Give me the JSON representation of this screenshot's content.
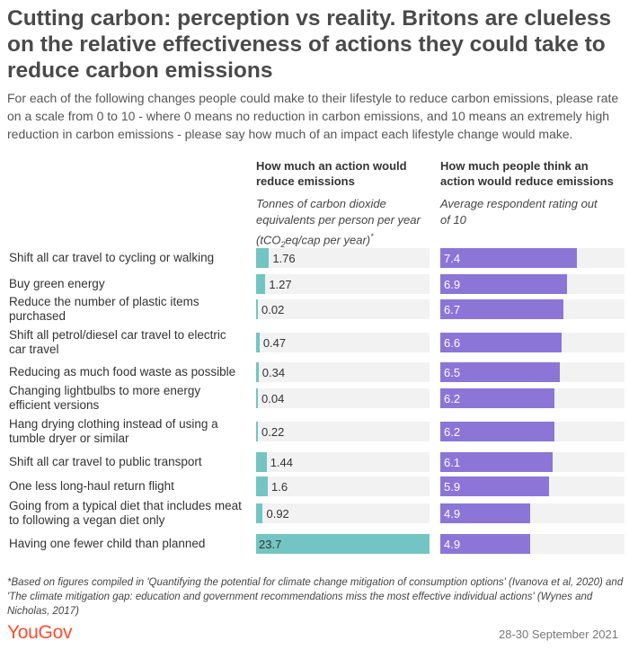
{
  "title": "Cutting carbon: perception vs reality. Britons are clueless on the relative effectiveness of actions they could take to reduce carbon emissions",
  "subtitle": "For each of the following changes people could make to their lifestyle to reduce carbon emissions, please rate on a scale from 0 to 10 - where 0 means no reduction in carbon emissions, and 10 means an extremely high reduction in carbon emissions - please say how much of an impact each lifestyle change would make.",
  "columns": {
    "actual": {
      "heading": "How much an action would reduce emissions",
      "sub_prefix": "Tonnes of carbon dioxide equivalents per person per year (tCO",
      "sub_subscript": "2",
      "sub_suffix": "eq/cap per year)",
      "sub_asterisk": "*"
    },
    "perceived": {
      "heading": "How much people think an action would reduce emissions",
      "sub": "Average respondent rating out of 10"
    }
  },
  "colors": {
    "actual_bar": "#72c5c2",
    "perceived_bar": "#8b75d7",
    "track": "#f2f2f2",
    "logo": "#ff4d2e"
  },
  "chart_data": {
    "type": "bar",
    "categories": [
      "Shift all car travel to cycling or walking",
      "Buy green energy",
      "Reduce the number of plastic items purchased",
      "Shift all petrol/diesel car travel to electric car travel",
      "Reducing as much food waste as possible",
      "Changing lightbulbs to more energy efficient versions",
      "Hang drying clothing instead of using a tumble dryer or similar",
      "Shift all car travel to public transport",
      "One less long-haul return flight",
      "Going from a typical diet that includes meat to following a vegan diet only",
      "Having one fewer child than planned"
    ],
    "series": [
      {
        "values": [
          1.76,
          1.27,
          0.02,
          0.47,
          0.34,
          0.04,
          0.22,
          1.44,
          1.6,
          0.92,
          23.7
        ],
        "labels": [
          "1.76",
          "1.27",
          "0.02",
          "0.47",
          "0.34",
          "0.04",
          "0.22",
          "1.44",
          "1.6",
          "0.92",
          "23.7"
        ],
        "xlim": [
          0,
          23.7
        ]
      },
      {
        "values": [
          7.4,
          6.9,
          6.7,
          6.6,
          6.5,
          6.2,
          6.2,
          6.1,
          5.9,
          4.9,
          4.9
        ],
        "labels": [
          "7.4",
          "6.9",
          "6.7",
          "6.6",
          "6.5",
          "6.2",
          "6.2",
          "6.1",
          "5.9",
          "4.9",
          "4.9"
        ],
        "xlim": [
          0,
          10
        ]
      }
    ]
  },
  "footnote": "*Based on figures compiled in 'Quantifying the potential for climate change mitigation of consumption options' (Ivanova et al, 2020) and 'The climate mitigation gap: education and government recommendations miss the most effective individual actions' (Wynes and Nicholas, 2017)",
  "brand": "YouGov",
  "date": "28-30 September 2021"
}
